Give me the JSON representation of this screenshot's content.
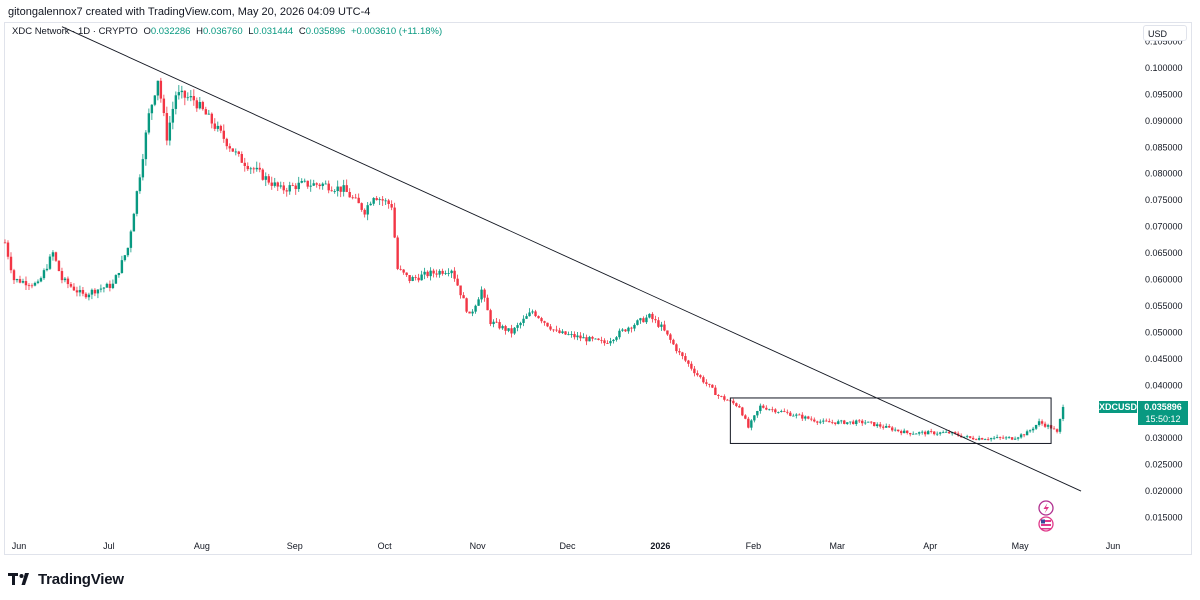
{
  "header": {
    "attribution": "gitongalennox7 created with TradingView.com, May 20, 2026 04:09 UTC-4"
  },
  "legend": {
    "symbol_desc": "XDC Network · 1D · CRYPTO",
    "open_label": "O",
    "open": "0.032286",
    "high_label": "H",
    "high": "0.036760",
    "low_label": "L",
    "low": "0.031444",
    "close_label": "C",
    "close": "0.035896",
    "change": "+0.003610 (+11.18%)"
  },
  "price_axis": {
    "currency": "USD"
  },
  "price_tag": {
    "symbol": "XDCUSD",
    "price": "0.035896",
    "countdown": "15:50:12"
  },
  "brand": {
    "name": "TradingView"
  },
  "icons": {
    "flash": "lightning-icon",
    "flag": "us-flag-icon"
  },
  "colors": {
    "up": "#089981",
    "down": "#f23645",
    "text": "#131722",
    "line": "#131722"
  },
  "chart_data": {
    "type": "candlestick",
    "title": "XDC Network · 1D · CRYPTO",
    "y_axis": {
      "ticks": [
        "0.105000",
        "0.100000",
        "0.095000",
        "0.090000",
        "0.085000",
        "0.080000",
        "0.075000",
        "0.070000",
        "0.065000",
        "0.060000",
        "0.055000",
        "0.050000",
        "0.045000",
        "0.040000",
        "0.030000",
        "0.025000",
        "0.020000",
        "0.015000"
      ],
      "range": [
        0.0115,
        0.1085
      ]
    },
    "x_axis": {
      "ticks": [
        "Jun",
        "Jul",
        "Aug",
        "Sep",
        "Oct",
        "Nov",
        "Dec",
        "2026",
        "Feb",
        "Mar",
        "Apr",
        "May",
        "Jun"
      ],
      "range": [
        "2025-06-01",
        "2026-06-14"
      ]
    },
    "price_path": [
      [
        "2025-06-01",
        0.067
      ],
      [
        "2025-06-04",
        0.06
      ],
      [
        "2025-06-12",
        0.059
      ],
      [
        "2025-06-17",
        0.065
      ],
      [
        "2025-06-20",
        0.06
      ],
      [
        "2025-06-27",
        0.057
      ],
      [
        "2025-07-01",
        0.058
      ],
      [
        "2025-07-07",
        0.059
      ],
      [
        "2025-07-12",
        0.066
      ],
      [
        "2025-07-16",
        0.08
      ],
      [
        "2025-07-19",
        0.091
      ],
      [
        "2025-07-22",
        0.098
      ],
      [
        "2025-07-25",
        0.087
      ],
      [
        "2025-07-28",
        0.095
      ],
      [
        "2025-08-03",
        0.094
      ],
      [
        "2025-08-10",
        0.089
      ],
      [
        "2025-08-18",
        0.083
      ],
      [
        "2025-08-25",
        0.08
      ],
      [
        "2025-09-01",
        0.077
      ],
      [
        "2025-09-08",
        0.078
      ],
      [
        "2025-09-15",
        0.078
      ],
      [
        "2025-09-22",
        0.077
      ],
      [
        "2025-09-29",
        0.073
      ],
      [
        "2025-10-02",
        0.076
      ],
      [
        "2025-10-08",
        0.074
      ],
      [
        "2025-10-10",
        0.062
      ],
      [
        "2025-10-14",
        0.06
      ],
      [
        "2025-10-20",
        0.061
      ],
      [
        "2025-10-28",
        0.062
      ],
      [
        "2025-11-03",
        0.053
      ],
      [
        "2025-11-07",
        0.058
      ],
      [
        "2025-11-10",
        0.052
      ],
      [
        "2025-11-17",
        0.05
      ],
      [
        "2025-11-24",
        0.054
      ],
      [
        "2025-12-02",
        0.05
      ],
      [
        "2025-12-10",
        0.049
      ],
      [
        "2025-12-18",
        0.048
      ],
      [
        "2025-12-26",
        0.051
      ],
      [
        "2026-01-02",
        0.053
      ],
      [
        "2026-01-06",
        0.051
      ],
      [
        "2026-01-12",
        0.046
      ],
      [
        "2026-01-18",
        0.042
      ],
      [
        "2026-01-25",
        0.038
      ],
      [
        "2026-02-01",
        0.036
      ],
      [
        "2026-02-04",
        0.032
      ],
      [
        "2026-02-08",
        0.036
      ],
      [
        "2026-02-15",
        0.035
      ],
      [
        "2026-02-22",
        0.034
      ],
      [
        "2026-03-01",
        0.033
      ],
      [
        "2026-03-08",
        0.033
      ],
      [
        "2026-03-15",
        0.033
      ],
      [
        "2026-03-22",
        0.032
      ],
      [
        "2026-03-29",
        0.031
      ],
      [
        "2026-04-05",
        0.031
      ],
      [
        "2026-04-12",
        0.031
      ],
      [
        "2026-04-19",
        0.03
      ],
      [
        "2026-04-26",
        0.03
      ],
      [
        "2026-05-03",
        0.03
      ],
      [
        "2026-05-08",
        0.031
      ],
      [
        "2026-05-12",
        0.033
      ],
      [
        "2026-05-16",
        0.032
      ],
      [
        "2026-05-18",
        0.031
      ],
      [
        "2026-05-20",
        0.0359
      ]
    ],
    "trendline": {
      "from": [
        "2025-06-20",
        0.1078
      ],
      "to": [
        "2026-05-26",
        0.02
      ]
    },
    "range_box": {
      "from": [
        "2026-01-29",
        0.0376
      ],
      "to": [
        "2026-05-16",
        0.029
      ]
    },
    "last_price": 0.035896
  }
}
